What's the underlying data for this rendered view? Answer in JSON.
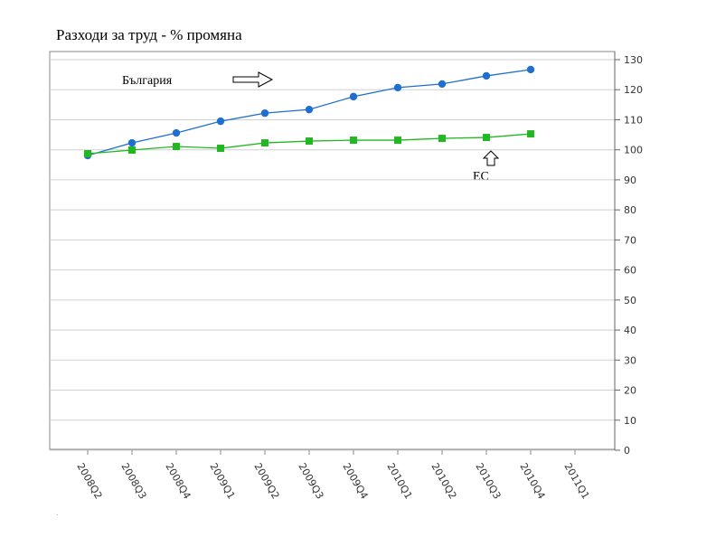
{
  "chart_data": {
    "type": "line",
    "title": "Разходи за труд - % промяна",
    "categories": [
      "2008Q2",
      "2008Q3",
      "2008Q4",
      "2009Q1",
      "2009Q2",
      "2009Q3",
      "2009Q4",
      "2010Q1",
      "2010Q2",
      "2010Q3",
      "2010Q4",
      "2011Q1"
    ],
    "series": [
      {
        "name": "България",
        "color": "#1f6fd0",
        "marker": "circle",
        "values": [
          98.1,
          102.3,
          105.6,
          109.5,
          112.2,
          113.4,
          117.7,
          120.7,
          121.9,
          124.6,
          126.7,
          null
        ]
      },
      {
        "name": "ЕС",
        "color": "#22b822",
        "marker": "square",
        "values": [
          98.7,
          99.9,
          101.1,
          100.5,
          102.3,
          102.9,
          103.2,
          103.2,
          103.8,
          104.1,
          105.3,
          null
        ]
      }
    ],
    "ylim": [
      0,
      130
    ],
    "yticks": [
      0,
      10,
      20,
      30,
      40,
      50,
      60,
      70,
      80,
      90,
      100,
      110,
      120,
      130
    ],
    "grid": true,
    "y_axis_side": "right"
  }
}
